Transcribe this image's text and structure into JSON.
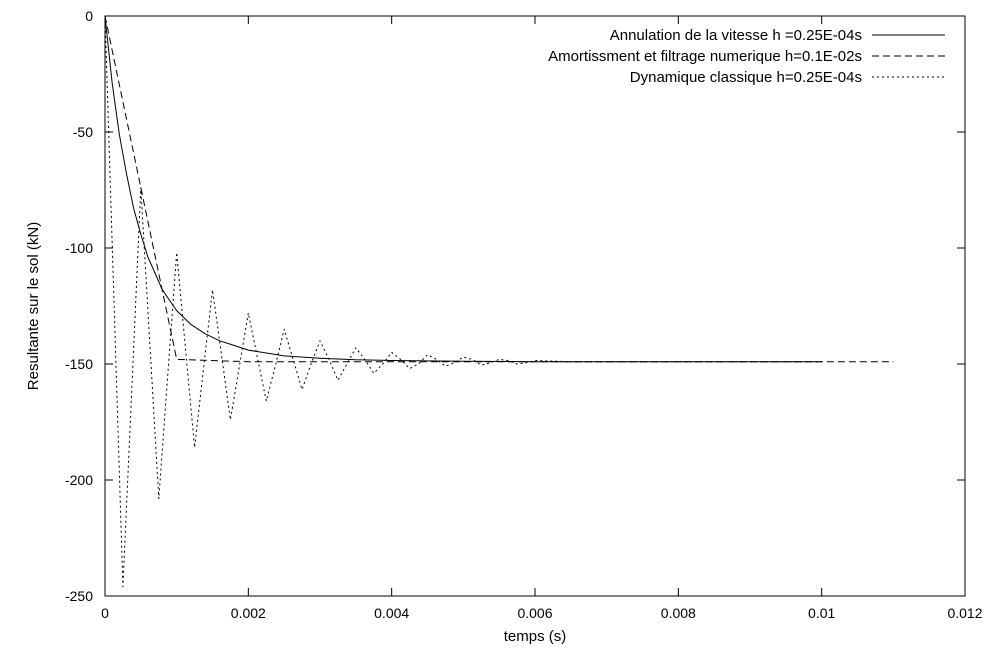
{
  "chart_data": {
    "type": "line",
    "xlabel": "temps (s)",
    "ylabel": "Resultante sur le sol (kN)",
    "xlim": [
      0,
      0.012
    ],
    "ylim": [
      -250,
      0
    ],
    "x_ticks": [
      0,
      0.002,
      0.004,
      0.006,
      0.008,
      0.01,
      0.012
    ],
    "x_tick_labels": [
      "0",
      "0.002",
      "0.004",
      "0.006",
      "0.008",
      "0.01",
      "0.012"
    ],
    "y_ticks": [
      0,
      -50,
      -100,
      -150,
      -200,
      -250
    ],
    "y_tick_labels": [
      "0",
      "-50",
      "-100",
      "-150",
      "-200",
      "-250"
    ],
    "grid": false,
    "legend_position": "top-right",
    "series": [
      {
        "name": "Annulation de la vitesse h =0.25E-04s",
        "style": "solid",
        "x": [
          0,
          0.0001,
          0.0002,
          0.0003,
          0.0004,
          0.0005,
          0.0006,
          0.0007,
          0.0008,
          0.001,
          0.0012,
          0.0014,
          0.0016,
          0.0018,
          0.002,
          0.0025,
          0.003,
          0.0035,
          0.004,
          0.005,
          0.006,
          0.007,
          0.008,
          0.009,
          0.01
        ],
        "values": [
          0,
          -29,
          -51,
          -68,
          -83,
          -94,
          -104,
          -111,
          -118,
          -127,
          -133,
          -137,
          -140,
          -142,
          -144,
          -146.5,
          -147.5,
          -148.2,
          -148.5,
          -148.8,
          -149,
          -149,
          -149,
          -149,
          -149
        ]
      },
      {
        "name": "Amortissment et filtrage numerique h=0.1E-02s",
        "style": "dashed",
        "x": [
          0,
          0.001,
          0.002,
          0.004,
          0.006,
          0.008,
          0.01,
          0.011
        ],
        "values": [
          0,
          -148,
          -149,
          -149,
          -149,
          -149,
          -149,
          -149
        ]
      },
      {
        "name": "Dynamique classique h=0.25E-04s",
        "style": "dotted",
        "x": [
          0,
          0.000125,
          0.00025,
          0.000375,
          0.0005,
          0.000625,
          0.00075,
          0.000875,
          0.001,
          0.001125,
          0.00125,
          0.001375,
          0.0015,
          0.001625,
          0.00175,
          0.001875,
          0.002,
          0.002125,
          0.00225,
          0.002375,
          0.0025,
          0.002625,
          0.00275,
          0.002875,
          0.003,
          0.003125,
          0.00325,
          0.003375,
          0.0035,
          0.003625,
          0.00375,
          0.003875,
          0.004,
          0.004125,
          0.00425,
          0.004375,
          0.0045,
          0.004625,
          0.00475,
          0.004875,
          0.005,
          0.005125,
          0.00525,
          0.005375,
          0.0055,
          0.005625,
          0.00575,
          0.005875,
          0.006,
          0.0065,
          0.007,
          0.008,
          0.009,
          0.01
        ],
        "values": [
          0,
          -123,
          -246,
          -160,
          -74,
          -141,
          -208,
          -155,
          -102,
          -144,
          -186,
          -152,
          -118,
          -146,
          -174,
          -151,
          -128,
          -147,
          -166,
          -151,
          -135,
          -148,
          -161,
          -150,
          -140,
          -148,
          -157,
          -150,
          -143,
          -148,
          -154,
          -150,
          -145,
          -148,
          -152,
          -150,
          -146,
          -148,
          -151,
          -149.5,
          -147,
          -148,
          -150.5,
          -149.5,
          -148,
          -148.5,
          -150,
          -149.5,
          -148.5,
          -149,
          -149,
          -149,
          -149,
          -149
        ]
      }
    ]
  }
}
